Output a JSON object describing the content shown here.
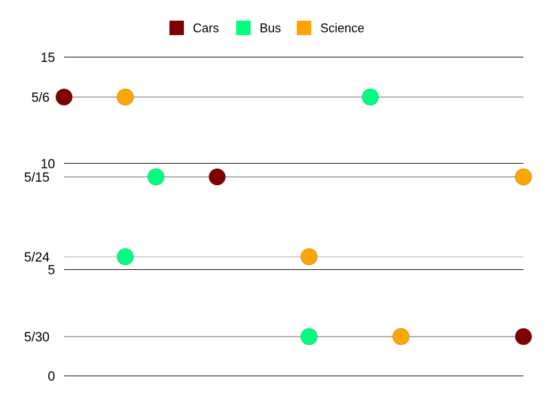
{
  "chart_data": {
    "type": "scatter",
    "title": "",
    "xlabel": "",
    "ylabel": "",
    "legend_position": "top-center",
    "grid": true,
    "x_range": [
      0,
      15
    ],
    "y_ticks": [
      "0",
      "5",
      "10",
      "15"
    ],
    "y_range": [
      0,
      15
    ],
    "categories": [
      "5/6",
      "5/15",
      "5/24",
      "5/30"
    ],
    "series": [
      {
        "name": "Cars",
        "color": "#800000",
        "values": [
          0,
          5,
          null,
          15
        ]
      },
      {
        "name": "Bus",
        "color": "#00ff80",
        "values": [
          10,
          3,
          2,
          8
        ]
      },
      {
        "name": "Science",
        "color": "#ffa500",
        "values": [
          2,
          15,
          8,
          11
        ]
      }
    ]
  }
}
